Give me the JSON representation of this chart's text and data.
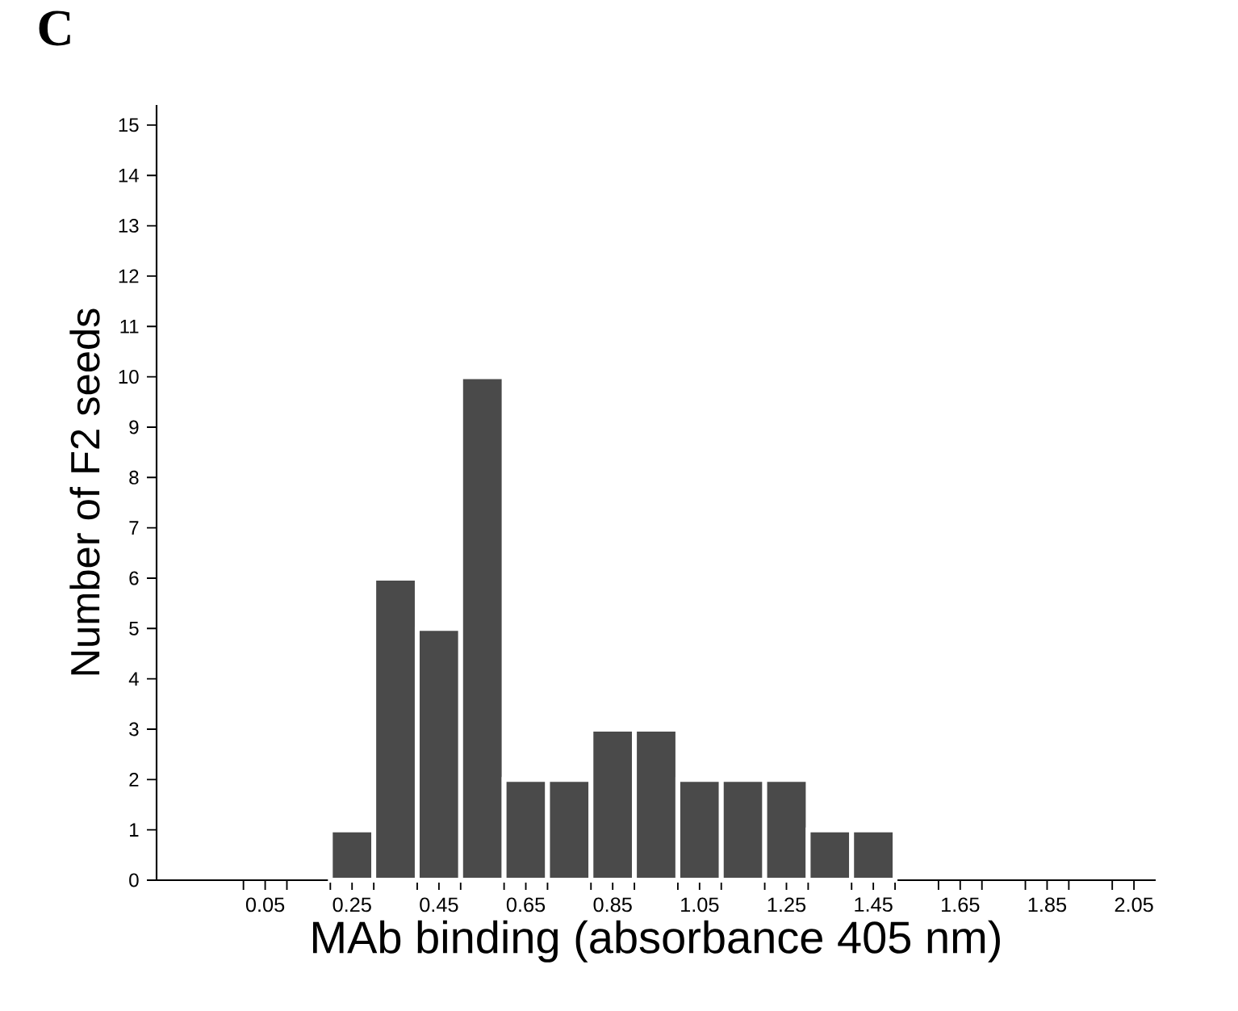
{
  "chart_data": {
    "type": "histogram",
    "annotations": [
      "C"
    ],
    "xlabel": "MAb binding (absorbance 405 nm)",
    "ylabel": "Number of F2 seeds",
    "bins": [
      0.2,
      0.3,
      0.4,
      0.5,
      0.6,
      0.7,
      0.8,
      0.9,
      1.0,
      1.1,
      1.2,
      1.3,
      1.4,
      1.5
    ],
    "values": [
      1,
      6,
      5,
      10,
      2,
      2,
      3,
      3,
      2,
      2,
      2,
      1,
      1
    ],
    "color": "#4a4a4a",
    "xlim": [
      -0.2,
      2.1
    ],
    "xticks": [
      {
        "value": 0.0,
        "label": null
      },
      0.05,
      {
        "value": 0.1,
        "label": null
      },
      {
        "value": 0.2,
        "label": null
      },
      0.25,
      {
        "value": 0.3,
        "label": null
      },
      {
        "value": 0.4,
        "label": null
      },
      0.45,
      {
        "value": 0.5,
        "label": null
      },
      {
        "value": 0.6,
        "label": null
      },
      0.65,
      {
        "value": 0.7,
        "label": null
      },
      {
        "value": 0.8,
        "label": null
      },
      0.85,
      {
        "value": 0.9,
        "label": null
      },
      {
        "value": 1.0,
        "label": null
      },
      1.05,
      {
        "value": 1.1,
        "label": null
      },
      {
        "value": 1.2,
        "label": null
      },
      1.25,
      {
        "value": 1.3,
        "label": null
      },
      {
        "value": 1.4,
        "label": null
      },
      1.45,
      {
        "value": 1.5,
        "label": null
      },
      {
        "value": 1.6,
        "label": null
      },
      1.65,
      {
        "value": 1.7,
        "label": null
      },
      {
        "value": 1.8,
        "label": null
      },
      1.85,
      {
        "value": 1.9,
        "label": null
      },
      {
        "value": 2.0,
        "label": null
      },
      2.05
    ],
    "ylim": [
      0,
      15.4
    ],
    "yticks": [
      0,
      1,
      2,
      3,
      4,
      5,
      6,
      7,
      8,
      9,
      10,
      11,
      12,
      13,
      14,
      15
    ],
    "grid": false
  }
}
